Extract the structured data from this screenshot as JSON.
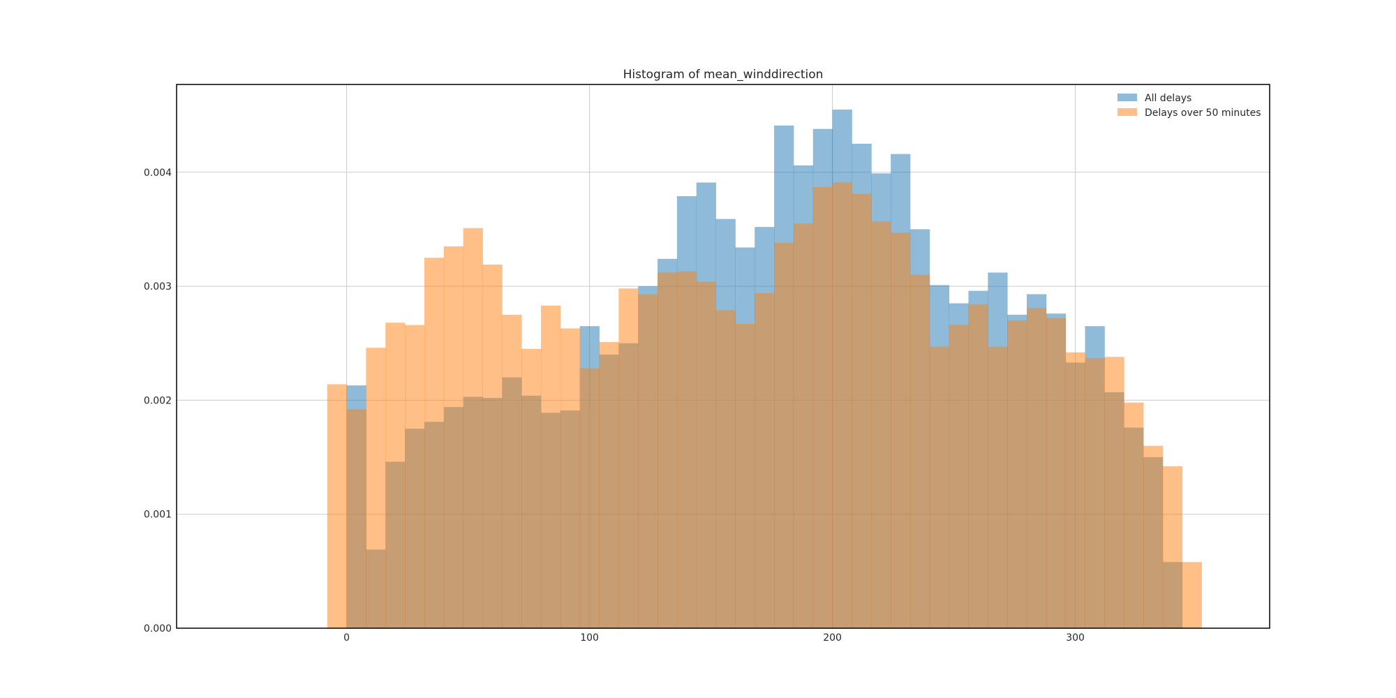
{
  "chart_data": {
    "type": "bar",
    "title": "Histogram of mean_winddirection",
    "xlabel": "",
    "ylabel": "",
    "xlim": [
      -70,
      380
    ],
    "ylim": [
      0,
      0.00477
    ],
    "x_ticks": [
      0,
      100,
      200,
      300
    ],
    "x_tick_labels": [
      "0",
      "100",
      "200",
      "300"
    ],
    "y_ticks": [
      0,
      0.001,
      0.002,
      0.003,
      0.004
    ],
    "y_tick_labels": [
      "0.000",
      "0.001",
      "0.002",
      "0.003",
      "0.004"
    ],
    "grid": true,
    "legend_position": "top-right",
    "series": [
      {
        "name": "All delays",
        "color": "#1f77b4",
        "opacity": 0.5,
        "bin_start": 0,
        "bin_width": 8,
        "values": [
          0.00213,
          0.00069,
          0.00146,
          0.00175,
          0.00181,
          0.00194,
          0.00203,
          0.00202,
          0.0022,
          0.00204,
          0.00189,
          0.00191,
          0.00265,
          0.0024,
          0.0025,
          0.003,
          0.00324,
          0.00379,
          0.00391,
          0.00359,
          0.00334,
          0.00352,
          0.00441,
          0.00406,
          0.00438,
          0.00455,
          0.00425,
          0.00399,
          0.00416,
          0.0035,
          0.00301,
          0.00285,
          0.00296,
          0.00312,
          0.00275,
          0.00293,
          0.00276,
          0.00233,
          0.00265,
          0.00207,
          0.00176,
          0.0015,
          0.00058
        ]
      },
      {
        "name": "Delays over 50 minutes",
        "color": "#ff7f0e",
        "opacity": 0.5,
        "bin_start": -8,
        "bin_width": 8,
        "values": [
          0.00214,
          0.00192,
          0.00246,
          0.00268,
          0.00266,
          0.00325,
          0.00335,
          0.00351,
          0.00319,
          0.00275,
          0.00245,
          0.00283,
          0.00263,
          0.00228,
          0.00251,
          0.00298,
          0.00293,
          0.00312,
          0.00313,
          0.00304,
          0.00279,
          0.00267,
          0.00294,
          0.00338,
          0.00355,
          0.00387,
          0.00391,
          0.00381,
          0.00357,
          0.00347,
          0.0031,
          0.00247,
          0.00266,
          0.00284,
          0.00247,
          0.0027,
          0.00281,
          0.00272,
          0.00242,
          0.00237,
          0.00238,
          0.00198,
          0.0016,
          0.00142,
          0.00058
        ]
      }
    ]
  }
}
